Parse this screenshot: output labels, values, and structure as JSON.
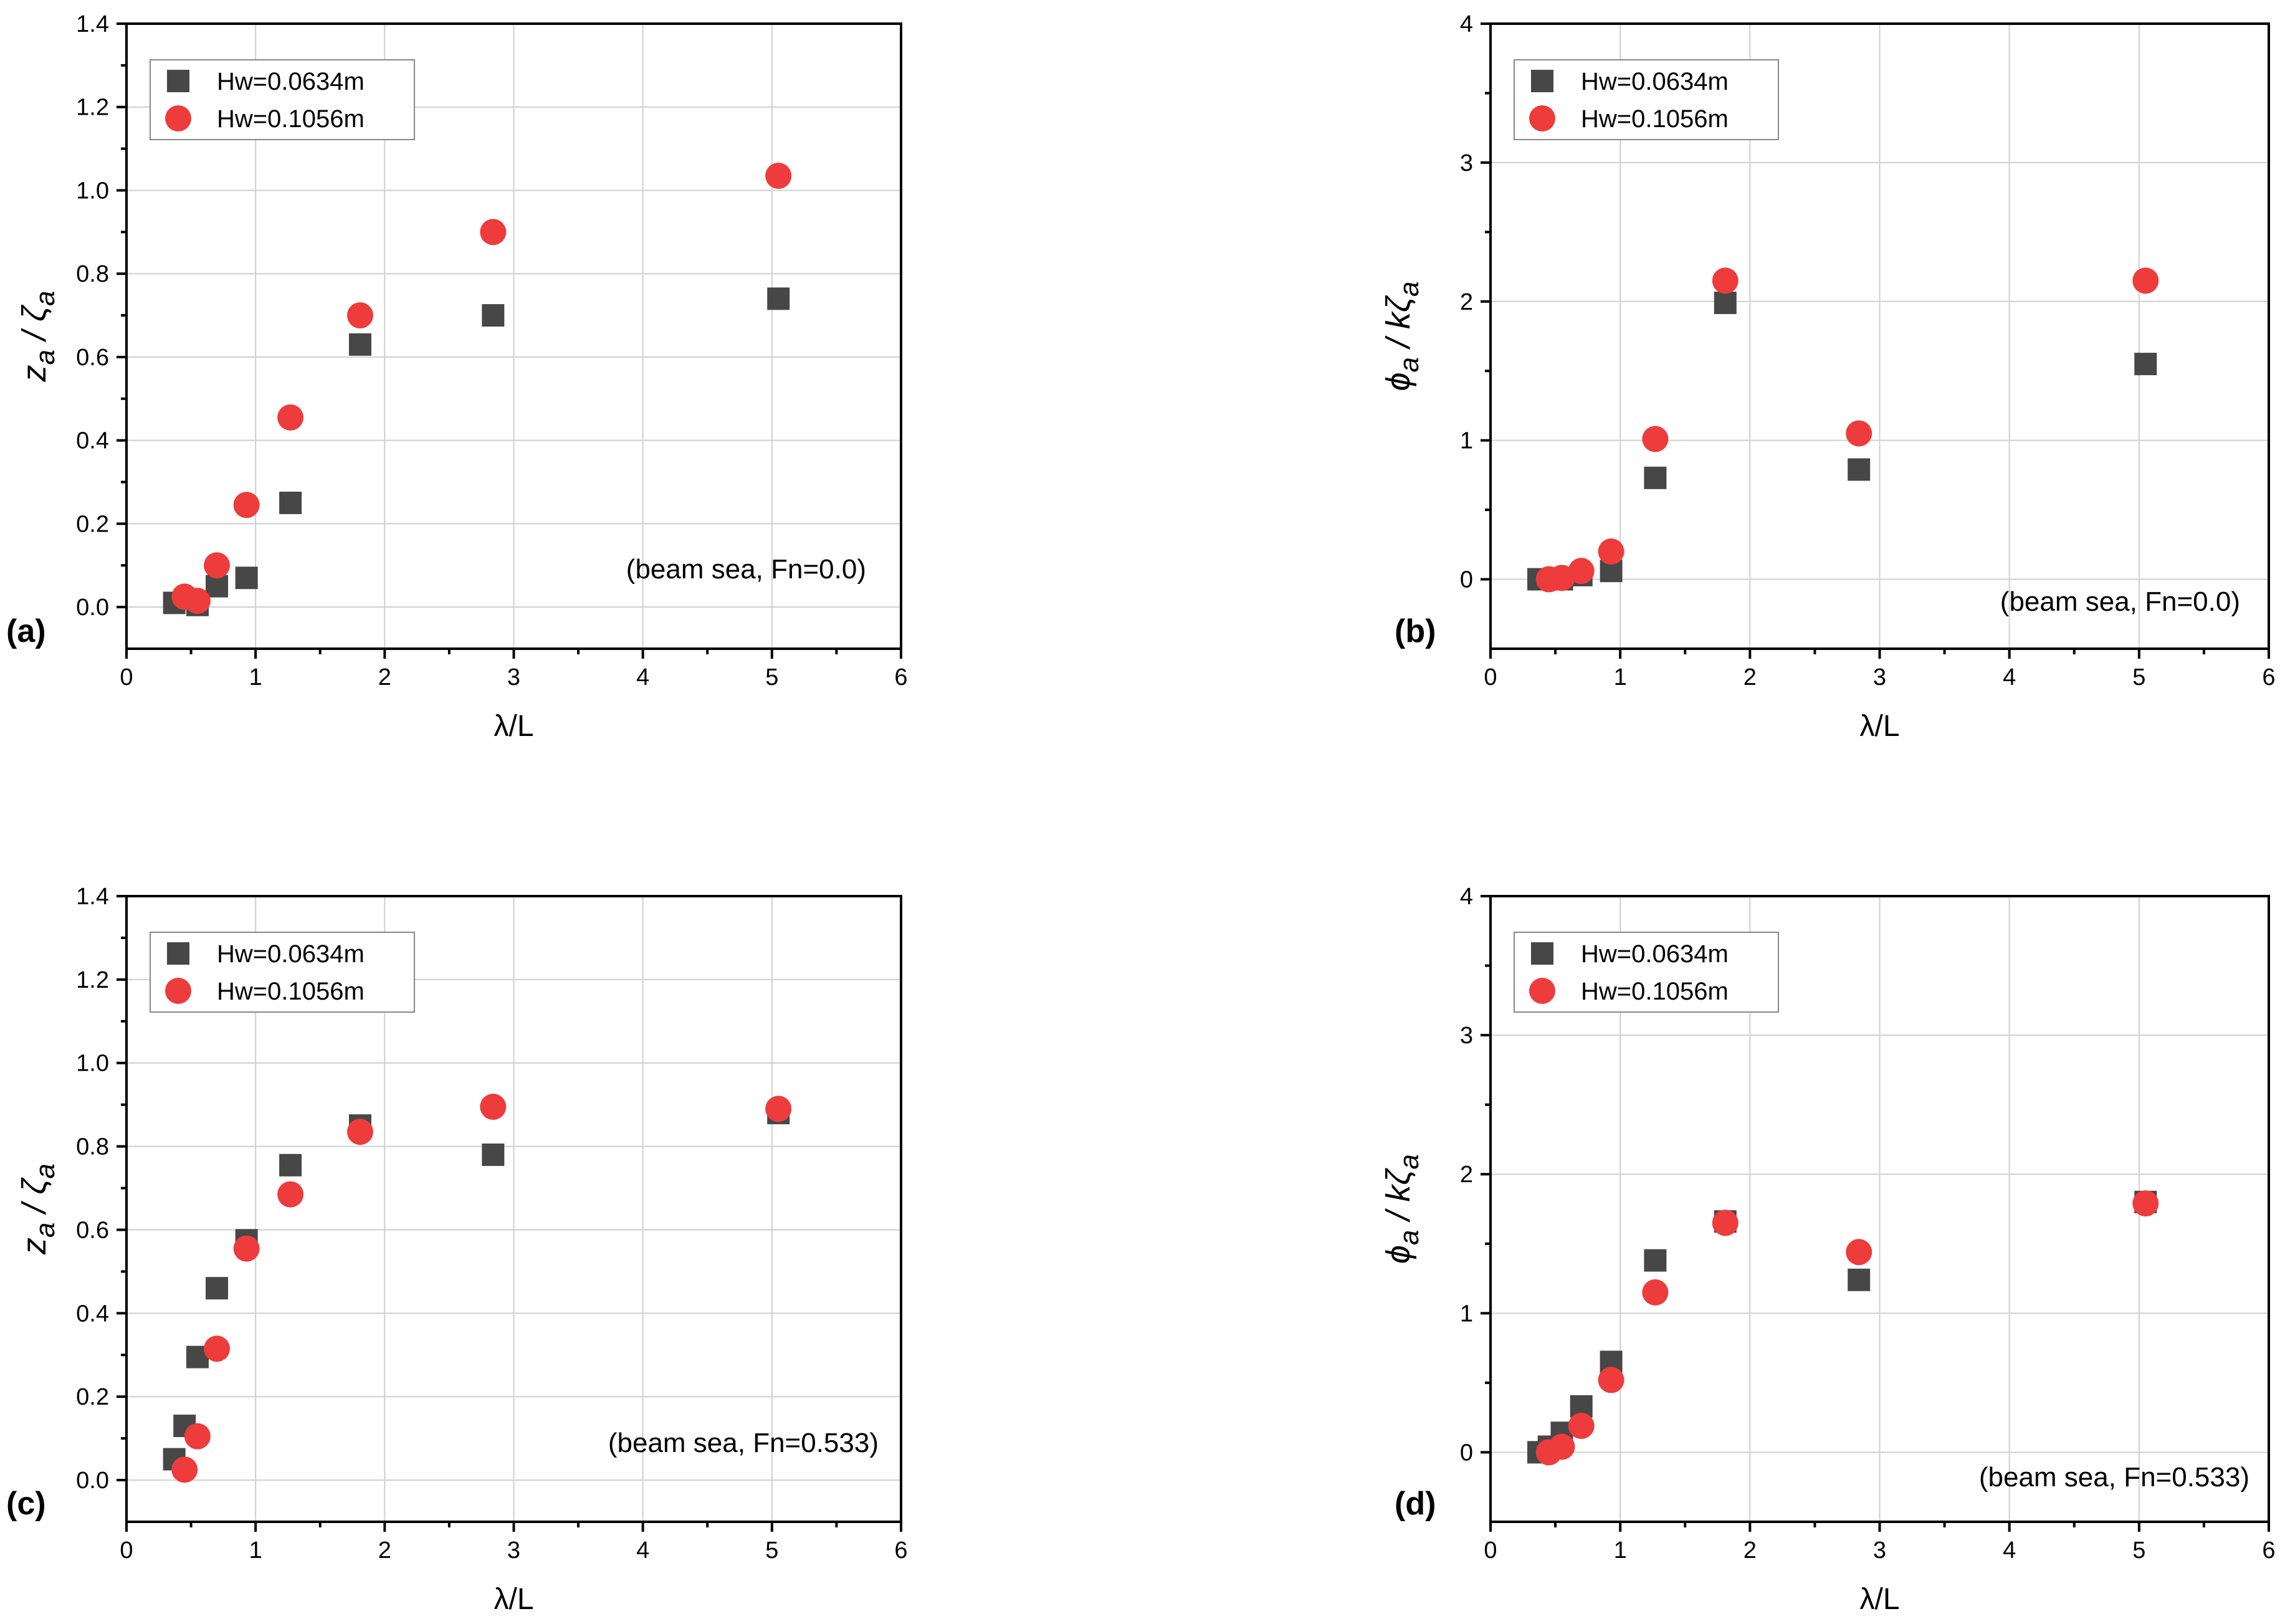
{
  "colors": {
    "series_square": "#474747",
    "series_circle": "#ee3b3b"
  },
  "chart_data": [
    {
      "panel_label": "(a)",
      "type": "scatter",
      "xlabel": "λ/L",
      "ylabel": {
        "main": "z",
        "sub": "a",
        "sep": " / ζ",
        "sub2": "a"
      },
      "xlim": [
        0,
        6
      ],
      "ylim": [
        -0.1,
        1.4
      ],
      "xticks": [
        0,
        1,
        2,
        3,
        4,
        5,
        6
      ],
      "yticks": [
        0.0,
        0.2,
        0.4,
        0.6,
        0.8,
        1.0,
        1.2,
        1.4
      ],
      "ytick_labels": [
        "0.0",
        "0.2",
        "0.4",
        "0.6",
        "0.8",
        "1.0",
        "1.2",
        "1.4"
      ],
      "grid": true,
      "legend_position": "top-left",
      "annotation": "(beam sea, Fn=0.0)",
      "series": [
        {
          "name": "Hw=0.0634m",
          "marker": "square",
          "x": [
            0.37,
            0.55,
            0.7,
            0.93,
            1.27,
            1.81,
            2.84,
            5.05
          ],
          "y": [
            0.01,
            0.005,
            0.05,
            0.07,
            0.25,
            0.63,
            0.7,
            0.74
          ]
        },
        {
          "name": "Hw=0.1056m",
          "marker": "circle",
          "x": [
            0.45,
            0.55,
            0.7,
            0.93,
            1.27,
            1.81,
            2.84,
            5.05
          ],
          "y": [
            0.025,
            0.015,
            0.1,
            0.245,
            0.455,
            0.7,
            0.9,
            1.035
          ]
        }
      ]
    },
    {
      "panel_label": "(b)",
      "type": "scatter",
      "xlabel": "λ/L",
      "ylabel": {
        "main": "ϕ",
        "sub": "a",
        "sep": " / kζ",
        "sub2": "a"
      },
      "xlim": [
        0,
        6
      ],
      "ylim": [
        -0.5,
        4
      ],
      "xticks": [
        0,
        1,
        2,
        3,
        4,
        5,
        6
      ],
      "yticks": [
        0,
        1,
        2,
        3,
        4
      ],
      "ytick_labels": [
        "0",
        "1",
        "2",
        "3",
        "4"
      ],
      "grid": true,
      "legend_position": "top-left",
      "annotation": "(beam sea, Fn=0.0)",
      "series": [
        {
          "name": "Hw=0.0634m",
          "marker": "square",
          "x": [
            0.37,
            0.55,
            0.7,
            0.93,
            1.27,
            1.81,
            2.84,
            5.05
          ],
          "y": [
            0.0,
            0.0,
            0.03,
            0.06,
            0.73,
            1.99,
            0.79,
            1.55
          ]
        },
        {
          "name": "Hw=0.1056m",
          "marker": "circle",
          "x": [
            0.45,
            0.55,
            0.7,
            0.93,
            1.27,
            1.81,
            2.84,
            5.05
          ],
          "y": [
            0.0,
            0.01,
            0.06,
            0.2,
            1.01,
            2.15,
            1.05,
            2.15
          ]
        }
      ]
    },
    {
      "panel_label": "(c)",
      "type": "scatter",
      "xlabel": "λ/L",
      "ylabel": {
        "main": "z",
        "sub": "a",
        "sep": " / ζ",
        "sub2": "a"
      },
      "xlim": [
        0,
        6
      ],
      "ylim": [
        -0.1,
        1.4
      ],
      "xticks": [
        0,
        1,
        2,
        3,
        4,
        5,
        6
      ],
      "yticks": [
        0.0,
        0.2,
        0.4,
        0.6,
        0.8,
        1.0,
        1.2,
        1.4
      ],
      "ytick_labels": [
        "0.0",
        "0.2",
        "0.4",
        "0.6",
        "0.8",
        "1.0",
        "1.2",
        "1.4"
      ],
      "grid": true,
      "legend_position": "top-left",
      "annotation": "(beam sea, Fn=0.533)",
      "series": [
        {
          "name": "Hw=0.0634m",
          "marker": "square",
          "x": [
            0.37,
            0.45,
            0.55,
            0.7,
            0.93,
            1.27,
            1.81,
            2.84,
            5.05
          ],
          "y": [
            0.05,
            0.13,
            0.295,
            0.46,
            0.575,
            0.755,
            0.85,
            0.78,
            0.88
          ]
        },
        {
          "name": "Hw=0.1056m",
          "marker": "circle",
          "x": [
            0.45,
            0.55,
            0.7,
            0.93,
            1.27,
            1.81,
            2.84,
            5.05
          ],
          "y": [
            0.025,
            0.105,
            0.315,
            0.555,
            0.685,
            0.835,
            0.895,
            0.89
          ]
        }
      ]
    },
    {
      "panel_label": "(d)",
      "type": "scatter",
      "xlabel": "λ/L",
      "ylabel": {
        "main": "ϕ",
        "sub": "a",
        "sep": " / kζ",
        "sub2": "a"
      },
      "xlim": [
        0,
        6
      ],
      "ylim": [
        -0.5,
        4
      ],
      "xticks": [
        0,
        1,
        2,
        3,
        4,
        5,
        6
      ],
      "yticks": [
        0,
        1,
        2,
        3,
        4
      ],
      "ytick_labels": [
        "0",
        "1",
        "2",
        "3",
        "4"
      ],
      "grid": true,
      "legend_position": "top-left",
      "annotation": "(beam sea, Fn=0.533)",
      "series": [
        {
          "name": "Hw=0.0634m",
          "marker": "square",
          "x": [
            0.37,
            0.45,
            0.55,
            0.7,
            0.93,
            1.27,
            1.81,
            2.84,
            5.05
          ],
          "y": [
            0.0,
            0.04,
            0.14,
            0.33,
            0.65,
            1.38,
            1.66,
            1.24,
            1.8
          ]
        },
        {
          "name": "Hw=0.1056m",
          "marker": "circle",
          "x": [
            0.45,
            0.55,
            0.7,
            0.93,
            1.27,
            1.81,
            2.84,
            5.05
          ],
          "y": [
            0.0,
            0.04,
            0.19,
            0.52,
            1.15,
            1.65,
            1.44,
            1.79
          ]
        }
      ]
    }
  ]
}
